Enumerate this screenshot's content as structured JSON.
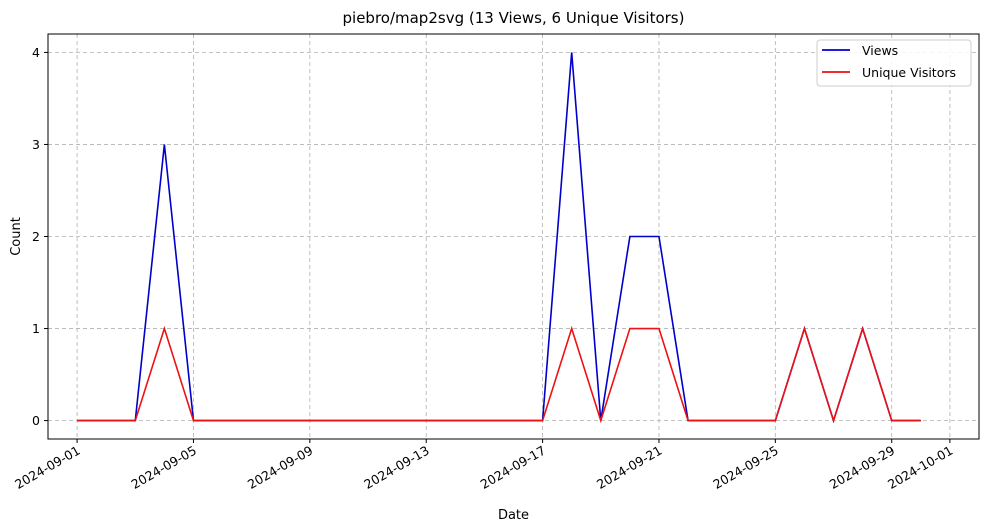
{
  "chart_data": {
    "type": "line",
    "title": "piebro/map2svg (13 Views, 6 Unique Visitors)",
    "xlabel": "Date",
    "ylabel": "Count",
    "ylim": [
      -0.2,
      4.2
    ],
    "xlim": [
      "2024-08-31",
      "2024-10-02"
    ],
    "yticks": [
      "0",
      "1",
      "2",
      "3",
      "4"
    ],
    "xticks": [
      "2024-09-01",
      "2024-09-05",
      "2024-09-09",
      "2024-09-13",
      "2024-09-17",
      "2024-09-21",
      "2024-09-25",
      "2024-09-29",
      "2024-10-01"
    ],
    "grid": true,
    "legend_position": "top-right",
    "x": [
      "2024-09-01",
      "2024-09-02",
      "2024-09-03",
      "2024-09-04",
      "2024-09-05",
      "2024-09-06",
      "2024-09-07",
      "2024-09-08",
      "2024-09-09",
      "2024-09-10",
      "2024-09-11",
      "2024-09-12",
      "2024-09-13",
      "2024-09-14",
      "2024-09-15",
      "2024-09-16",
      "2024-09-17",
      "2024-09-18",
      "2024-09-19",
      "2024-09-20",
      "2024-09-21",
      "2024-09-22",
      "2024-09-23",
      "2024-09-24",
      "2024-09-25",
      "2024-09-26",
      "2024-09-27",
      "2024-09-28",
      "2024-09-29",
      "2024-09-30"
    ],
    "series": [
      {
        "name": "Views",
        "color": "#0000cc",
        "values": [
          0,
          0,
          0,
          3,
          0,
          0,
          0,
          0,
          0,
          0,
          0,
          0,
          0,
          0,
          0,
          0,
          0,
          4,
          0,
          2,
          2,
          0,
          0,
          0,
          0,
          1,
          0,
          1,
          0,
          0
        ]
      },
      {
        "name": "Unique Visitors",
        "color": "#ee1111",
        "values": [
          0,
          0,
          0,
          1,
          0,
          0,
          0,
          0,
          0,
          0,
          0,
          0,
          0,
          0,
          0,
          0,
          0,
          1,
          0,
          1,
          1,
          0,
          0,
          0,
          0,
          1,
          0,
          1,
          0,
          0
        ]
      }
    ]
  }
}
